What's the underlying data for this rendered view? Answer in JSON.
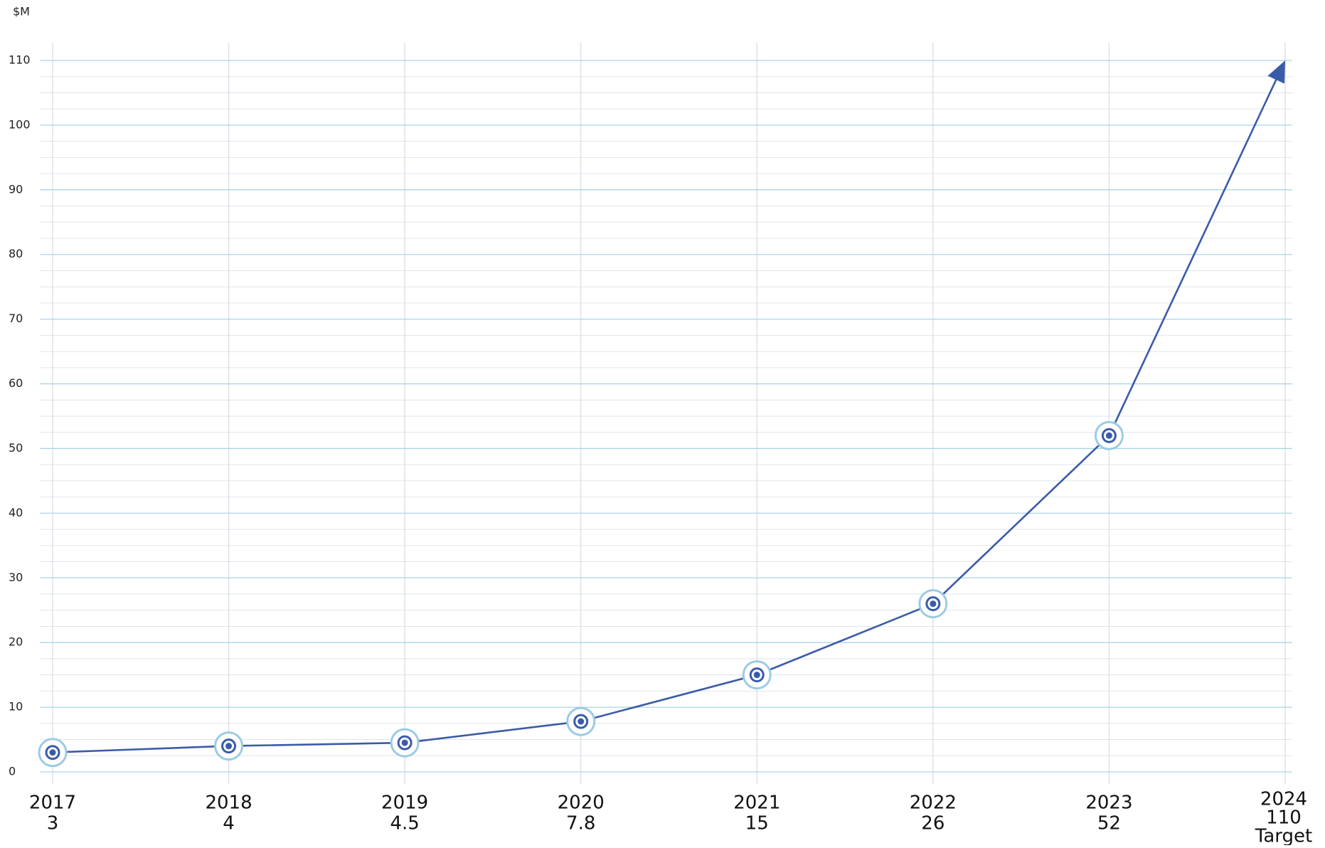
{
  "chart_data": {
    "type": "line",
    "y_axis_label": "$M",
    "categories": [
      "2017",
      "2018",
      "2019",
      "2020",
      "2021",
      "2022",
      "2023",
      "2024"
    ],
    "series": [
      {
        "color": "#3a5ba8",
        "values": [
          3,
          4,
          4.5,
          7.8,
          15,
          26,
          52,
          110
        ]
      }
    ],
    "annotation": "Target",
    "ylim": [
      0,
      110
    ],
    "yticks": [
      0,
      10,
      20,
      30,
      40,
      50,
      60,
      70,
      80,
      90,
      100,
      110
    ],
    "minor_yticks": [
      2.5,
      5,
      7.5,
      12.5,
      15,
      17.5,
      22.5,
      25,
      27.5,
      32.5,
      35,
      37.5,
      42.5,
      45,
      47.5,
      52.5,
      55,
      57.5,
      62.5,
      65,
      67.5,
      72.5,
      75,
      77.5,
      82.5,
      85,
      87.5,
      92.5,
      95,
      97.5,
      102.5,
      105,
      107.5
    ],
    "grid": true
  }
}
